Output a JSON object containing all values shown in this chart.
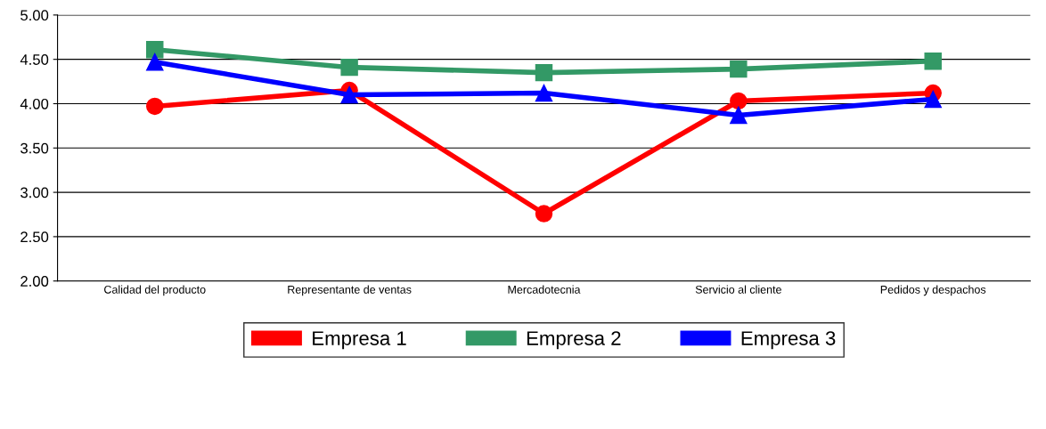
{
  "chart_data": {
    "type": "line",
    "categories": [
      "Calidad del producto",
      "Representante de ventas",
      "Mercadotecnia",
      "Servicio al cliente",
      "Pedidos y despachos"
    ],
    "series": [
      {
        "name": "Empresa 1",
        "color": "#ff0000",
        "marker": "circle",
        "values": [
          3.97,
          4.15,
          2.76,
          4.03,
          4.12
        ]
      },
      {
        "name": "Empresa 2",
        "color": "#339966",
        "marker": "square",
        "values": [
          4.61,
          4.41,
          4.35,
          4.39,
          4.48
        ]
      },
      {
        "name": "Empresa 3",
        "color": "#0000ff",
        "marker": "triangle",
        "values": [
          4.47,
          4.1,
          4.12,
          3.87,
          4.05
        ]
      }
    ],
    "ylim": [
      2.0,
      5.0
    ],
    "yticks": [
      {
        "value": 2.0,
        "label": "2.00"
      },
      {
        "value": 2.5,
        "label": "2.50"
      },
      {
        "value": 3.0,
        "label": "3.00"
      },
      {
        "value": 3.5,
        "label": "3.50"
      },
      {
        "value": 4.0,
        "label": "4.00"
      },
      {
        "value": 4.5,
        "label": "4.50"
      },
      {
        "value": 5.0,
        "label": "5.00"
      }
    ],
    "grid": "y",
    "legend": "bottom",
    "line_style": "solid"
  }
}
